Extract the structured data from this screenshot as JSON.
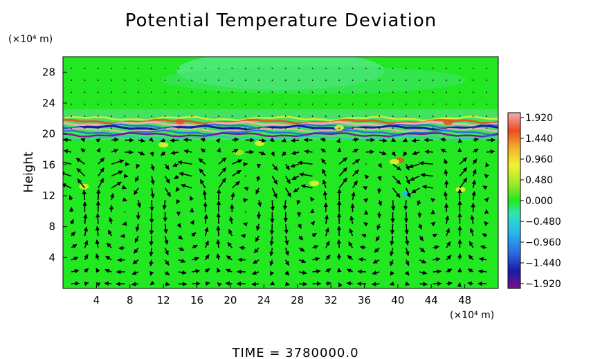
{
  "chart_data": {
    "type": "heatmap",
    "title": "Potential Temperature Deviation",
    "ylabel": "Height",
    "x_unit": "(×10⁴ m)",
    "y_unit": "(×10⁴ m)",
    "xlim": [
      0,
      52
    ],
    "ylim": [
      0,
      30
    ],
    "x_ticks": [
      "4",
      "8",
      "12",
      "16",
      "20",
      "24",
      "28",
      "32",
      "36",
      "40",
      "44",
      "48"
    ],
    "y_ticks": [
      "4",
      "8",
      "12",
      "16",
      "20",
      "24",
      "28"
    ],
    "colorbar": {
      "min": -1.92,
      "max": 1.92,
      "ticks": [
        "1.920",
        "1.440",
        "0.960",
        "0.480",
        "0.000",
        "−0.480",
        "−0.960",
        "−1.440",
        "−1.920"
      ],
      "colors": [
        "#7a0d8e",
        "#1a1aa8",
        "#2a6ae0",
        "#28b8f0",
        "#2fe6b0",
        "#22e822",
        "#a6e82a",
        "#f2f230",
        "#f5b02a",
        "#ee4a22",
        "#f0b0b0"
      ]
    },
    "bands": [
      {
        "y_center": 21.2,
        "description": "strong alternating positive/negative deviation layer",
        "min": -1.92,
        "max": 1.92
      },
      {
        "y_center": 20.2,
        "description": "negative deviation layer",
        "min": -1.92,
        "max": -0.5
      },
      {
        "y_center": 28.0,
        "description": "weak negative deviation region",
        "min": -0.48,
        "max": 0.0
      }
    ],
    "wind_vectors": "perturbation wind arrows: convective cells below ~20 with alternating up/down drafts, horizontal flow near 13–16",
    "footer": "TIME = 3780000.0"
  }
}
